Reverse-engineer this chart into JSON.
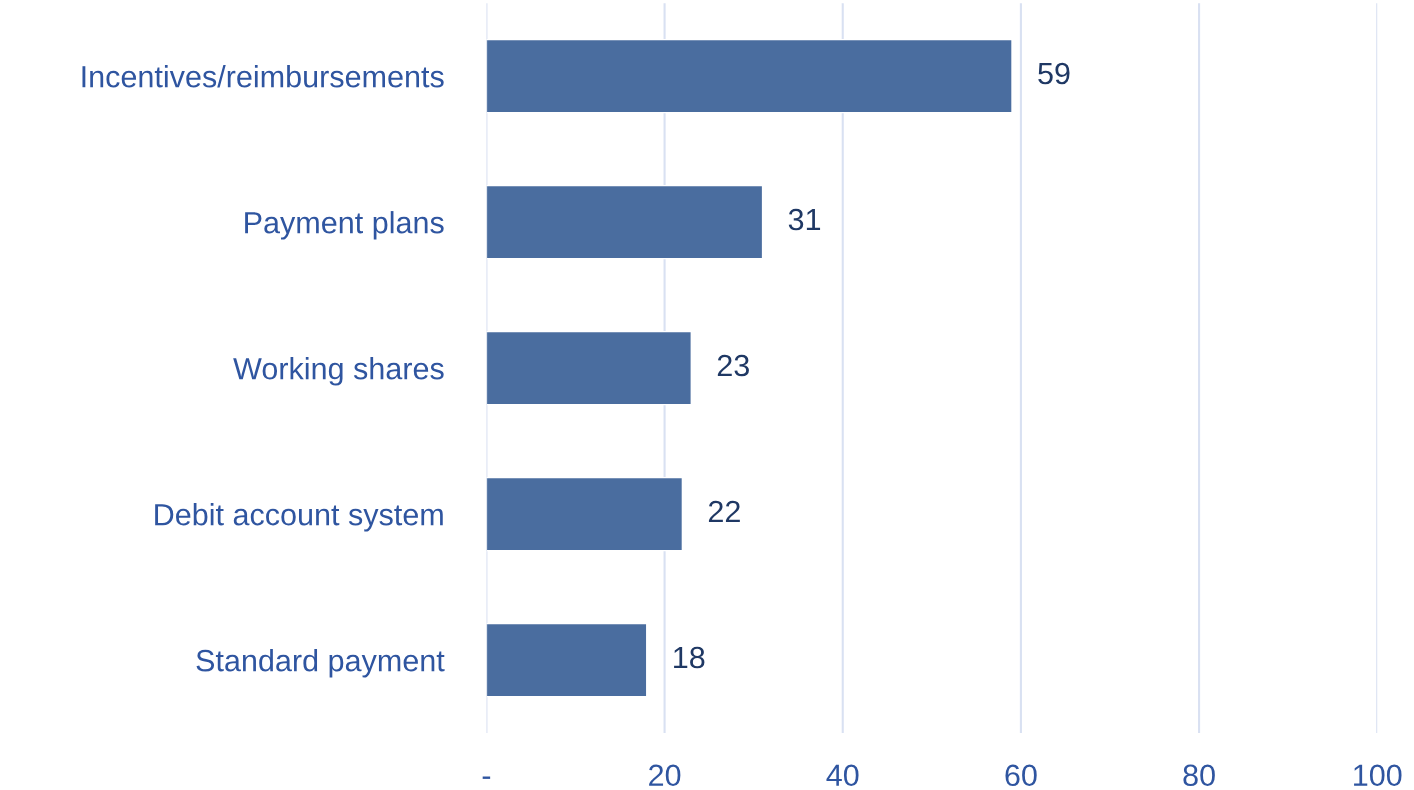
{
  "chart_data": {
    "type": "bar",
    "orientation": "horizontal",
    "categories": [
      "Incentives/reimbursements",
      "Payment plans",
      "Working shares",
      "Debit account system",
      "Standard payment"
    ],
    "values": [
      59,
      31,
      23,
      22,
      18
    ],
    "color": "#4a6d9f",
    "xlim": [
      0,
      100
    ],
    "xticks": [
      {
        "value": 0,
        "label": "-"
      },
      20,
      40,
      60,
      80,
      100
    ],
    "grid": "x",
    "data_labels": true
  }
}
